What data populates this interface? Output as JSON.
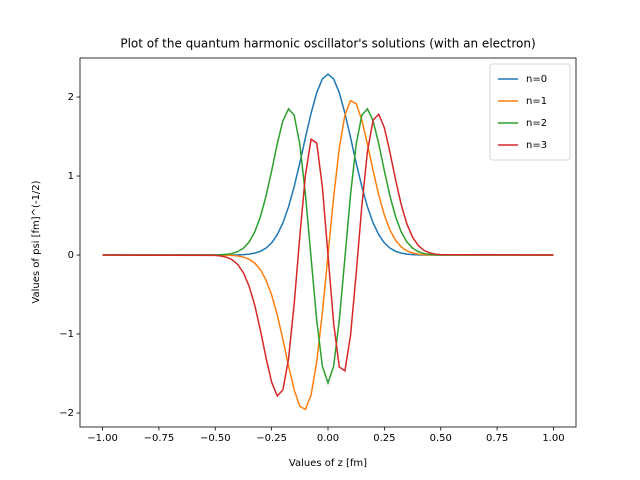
{
  "chart_data": {
    "type": "line",
    "title": "Plot of the quantum harmonic oscillator's solutions (with an electron)",
    "x_label": "Values of z [fm]",
    "y_label": "Values of psi [fm]^(-1/2)",
    "legend": "upper right",
    "x": [
      -1,
      -0.5,
      -0.475,
      -0.45,
      -0.425,
      -0.4,
      -0.375,
      -0.35,
      -0.325,
      -0.3,
      -0.275,
      -0.25,
      -0.225,
      -0.2,
      -0.175,
      -0.15,
      -0.125,
      -0.1,
      -0.075,
      -0.05,
      -0.025,
      0,
      0.025,
      0.05,
      0.075,
      0.1,
      0.125,
      0.15,
      0.175,
      0.2,
      0.225,
      0.25,
      0.275,
      0.3,
      0.325,
      0.35,
      0.375,
      0.4,
      0.425,
      0.45,
      0.475,
      0.5,
      1
    ],
    "series": [
      {
        "name": "n=0",
        "color": "#1f77b4",
        "values": [
          0,
          0,
          0,
          0,
          0.001,
          0.002,
          0.005,
          0.012,
          0.024,
          0.047,
          0.087,
          0.154,
          0.257,
          0.407,
          0.61,
          0.866,
          1.166,
          1.487,
          1.796,
          2.055,
          2.229,
          2.29,
          2.229,
          2.055,
          1.796,
          1.487,
          1.166,
          0.866,
          0.61,
          0.407,
          0.257,
          0.154,
          0.087,
          0.047,
          0.024,
          0.012,
          0.005,
          0.002,
          0.001,
          0,
          0,
          0,
          0
        ]
      },
      {
        "name": "n=1",
        "color": "#ff7f0e",
        "values": [
          0,
          0,
          -0.001,
          -0.002,
          -0.005,
          -0.012,
          -0.026,
          -0.053,
          -0.102,
          -0.185,
          -0.316,
          -0.506,
          -0.76,
          -1.069,
          -1.403,
          -1.708,
          -1.916,
          -1.954,
          -1.771,
          -1.351,
          -0.733,
          0,
          0.733,
          1.351,
          1.771,
          1.954,
          1.916,
          1.708,
          1.403,
          1.069,
          0.76,
          0.506,
          0.316,
          0.185,
          0.102,
          0.053,
          0.026,
          0.012,
          0.005,
          0.002,
          0.001,
          0,
          0
        ]
      },
      {
        "name": "n=2",
        "color": "#2ca02c",
        "values": [
          0,
          0.001,
          0.004,
          0.009,
          0.02,
          0.043,
          0.087,
          0.164,
          0.291,
          0.483,
          0.745,
          1.066,
          1.408,
          1.7,
          1.851,
          1.769,
          1.402,
          0.765,
          -0.036,
          -0.826,
          -1.406,
          -1.619,
          -1.406,
          -0.826,
          -0.036,
          0.765,
          1.402,
          1.769,
          1.851,
          1.7,
          1.408,
          1.066,
          0.745,
          0.483,
          0.291,
          0.164,
          0.087,
          0.043,
          0.02,
          0.009,
          0.004,
          0.001,
          0
        ]
      },
      {
        "name": "n=3",
        "color": "#d62728",
        "values": [
          0,
          -0.005,
          -0.012,
          -0.028,
          -0.06,
          -0.121,
          -0.226,
          -0.393,
          -0.635,
          -0.948,
          -1.297,
          -1.61,
          -1.783,
          -1.708,
          -1.313,
          -0.619,
          0.235,
          1.015,
          1.466,
          1.417,
          0.865,
          0,
          -0.865,
          -1.417,
          -1.466,
          -1.015,
          -0.235,
          0.619,
          1.313,
          1.708,
          1.783,
          1.61,
          1.297,
          0.948,
          0.635,
          0.393,
          0.226,
          0.121,
          0.06,
          0.028,
          0.012,
          0.005,
          0
        ]
      }
    ],
    "xlim": [
      -1.1,
      1.1
    ],
    "ylim": [
      -2.177,
      2.494
    ],
    "xticks": [
      {
        "value": -1,
        "label": "−1.00"
      },
      {
        "value": -0.75,
        "label": "−0.75"
      },
      {
        "value": -0.5,
        "label": "−0.50"
      },
      {
        "value": -0.25,
        "label": "−0.25"
      },
      {
        "value": 0,
        "label": "0.00"
      },
      {
        "value": 0.25,
        "label": "0.25"
      },
      {
        "value": 0.5,
        "label": "0.50"
      },
      {
        "value": 0.75,
        "label": "0.75"
      },
      {
        "value": 1,
        "label": "1.00"
      }
    ],
    "yticks": [
      {
        "value": -2,
        "label": "−2"
      },
      {
        "value": -1,
        "label": "−1"
      },
      0,
      1,
      2
    ],
    "grid": false
  }
}
